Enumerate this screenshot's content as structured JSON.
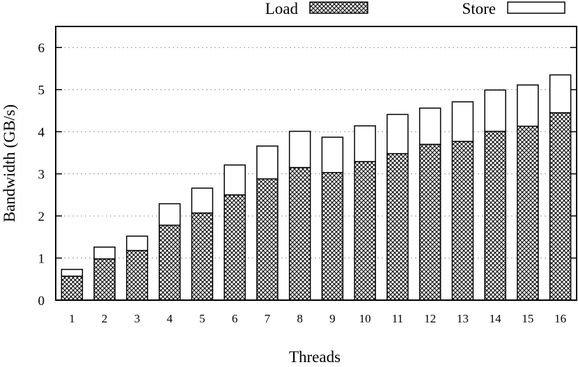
{
  "chart_data": {
    "type": "bar",
    "stacked": true,
    "categories": [
      "1",
      "2",
      "3",
      "4",
      "5",
      "6",
      "7",
      "8",
      "9",
      "10",
      "11",
      "12",
      "13",
      "14",
      "15",
      "16"
    ],
    "series": [
      {
        "name": "Load",
        "pattern": "crosshatch",
        "color": "#000000",
        "values": [
          0.57,
          0.98,
          1.18,
          1.78,
          2.07,
          2.5,
          2.88,
          3.15,
          3.03,
          3.29,
          3.48,
          3.7,
          3.77,
          4.01,
          4.13,
          4.45
        ]
      },
      {
        "name": "Store",
        "pattern": "solid",
        "color": "#ffffff",
        "values": [
          0.16,
          0.28,
          0.34,
          0.51,
          0.59,
          0.71,
          0.78,
          0.86,
          0.84,
          0.85,
          0.93,
          0.86,
          0.94,
          0.98,
          0.98,
          0.9
        ]
      }
    ],
    "xlabel": "Threads",
    "ylabel": "Bandwidth (GB/s)",
    "ylim": [
      0,
      6.5
    ],
    "yticks": [
      0,
      1,
      2,
      3,
      4,
      5,
      6
    ],
    "grid": "y-dotted",
    "legend_position": "top-outside"
  }
}
